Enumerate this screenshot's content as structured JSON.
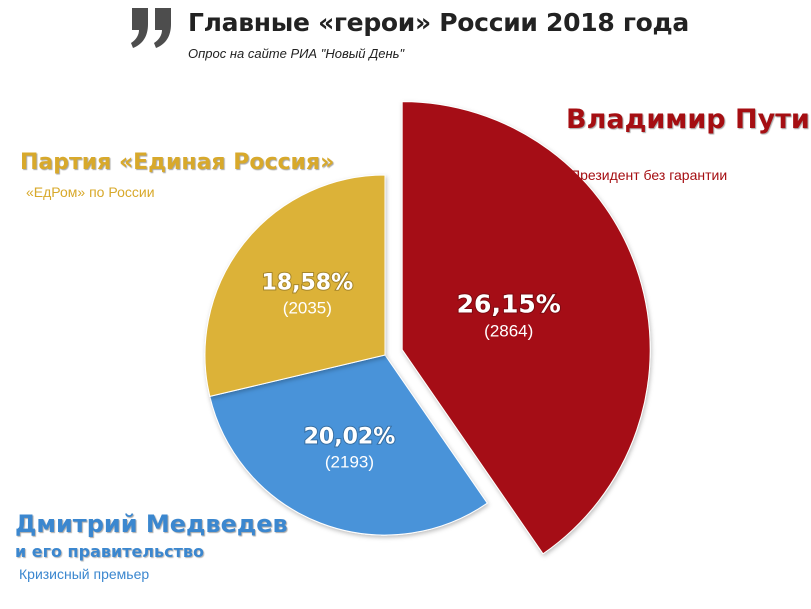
{
  "header": {
    "title": "Главные «герои» России 2018 года",
    "subtitle": "Опрос на сайте РИА \"Новый День\"",
    "icon": "quote-icon"
  },
  "chart_data": {
    "type": "pie",
    "title": "Главные «герои» России 2018 года",
    "subtitle": "Опрос на сайте РИА \"Новый День\"",
    "slices": [
      {
        "key": "putin",
        "name": "Владимир Путин",
        "description": "Президент без гарантии",
        "percent": 26.15,
        "percent_label": "26,15%",
        "votes": 2864,
        "votes_label": "(2864)",
        "color": "#a50e12",
        "label_color": "#a50e12",
        "exploded": true
      },
      {
        "key": "medvedev",
        "name": "Дмитрий Медведев",
        "name_sub": "и его правительство",
        "description": "Кризисный премьер",
        "percent": 20.02,
        "percent_label": "20,02%",
        "votes": 2193,
        "votes_label": "(2193)",
        "color": "#4a93d9",
        "label_color": "#3b87cf",
        "exploded": false
      },
      {
        "key": "edinaya_rossiya",
        "name": "Партия «Единая Россия»",
        "description": "«ЕдРом» по России",
        "percent": 18.58,
        "percent_label": "18,58%",
        "votes": 2035,
        "votes_label": "(2035)",
        "color": "#dcb237",
        "label_color": "#d8a92b",
        "exploded": false
      }
    ]
  }
}
